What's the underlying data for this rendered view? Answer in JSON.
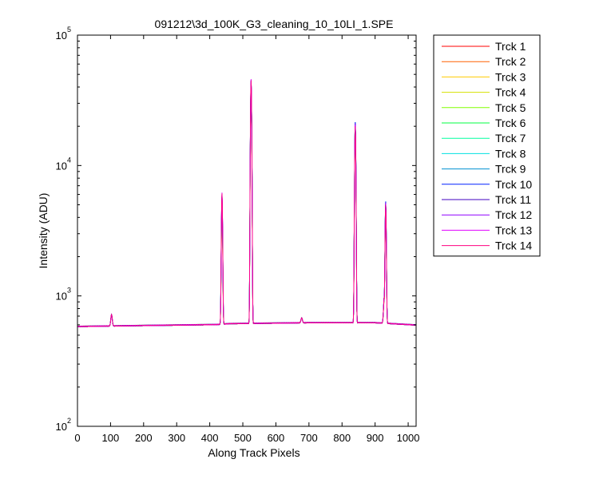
{
  "chart_data": {
    "type": "line",
    "title": "091212\\3d_100K_G3_cleaning_10_10LI_1.SPE",
    "xlabel": "Along Track Pixels",
    "ylabel": "Intensity (ADU)",
    "xlim": [
      0,
      1024
    ],
    "ylim": [
      100,
      100000
    ],
    "yscale": "log",
    "xticks": [
      0,
      100,
      200,
      300,
      400,
      500,
      600,
      700,
      800,
      900,
      1000
    ],
    "yticks": [
      {
        "value": 100,
        "base": "10",
        "exp": "2"
      },
      {
        "value": 1000,
        "base": "10",
        "exp": "3"
      },
      {
        "value": 10000,
        "base": "10",
        "exp": "4"
      },
      {
        "value": 100000,
        "base": "10",
        "exp": "5"
      }
    ],
    "grid": false,
    "legend_position": "outside-top-right",
    "baseline": [
      [
        0,
        580
      ],
      [
        200,
        590
      ],
      [
        420,
        600
      ],
      [
        460,
        610
      ],
      [
        700,
        620
      ],
      [
        900,
        620
      ],
      [
        1024,
        595
      ]
    ],
    "series": [
      {
        "name": "Trck 1",
        "color": "#ff0000",
        "peaks": [
          [
            437,
            4800
          ],
          [
            525,
            40000
          ],
          [
            840,
            19000
          ],
          [
            932,
            4800
          ],
          [
            928,
            950
          ],
          [
            103,
            720
          ],
          [
            678,
            680
          ]
        ]
      },
      {
        "name": "Trck 2",
        "color": "#ff6000",
        "peaks": [
          [
            437,
            5000
          ],
          [
            525,
            41000
          ],
          [
            840,
            19500
          ],
          [
            932,
            4900
          ],
          [
            928,
            960
          ],
          [
            103,
            720
          ],
          [
            678,
            680
          ]
        ]
      },
      {
        "name": "Trck 3",
        "color": "#ffcc00",
        "peaks": [
          [
            437,
            5200
          ],
          [
            525,
            42000
          ],
          [
            840,
            20000
          ],
          [
            932,
            5000
          ],
          [
            928,
            980
          ],
          [
            103,
            720
          ],
          [
            678,
            680
          ]
        ]
      },
      {
        "name": "Trck 4",
        "color": "#d4e000",
        "peaks": [
          [
            437,
            5300
          ],
          [
            525,
            42500
          ],
          [
            840,
            20000
          ],
          [
            932,
            5000
          ],
          [
            928,
            980
          ],
          [
            103,
            720
          ],
          [
            678,
            680
          ]
        ]
      },
      {
        "name": "Trck 5",
        "color": "#80ff00",
        "peaks": [
          [
            437,
            5400
          ],
          [
            525,
            43000
          ],
          [
            840,
            20500
          ],
          [
            932,
            5100
          ],
          [
            928,
            990
          ],
          [
            103,
            720
          ],
          [
            678,
            680
          ]
        ]
      },
      {
        "name": "Trck 6",
        "color": "#00ff40",
        "peaks": [
          [
            437,
            5500
          ],
          [
            525,
            43500
          ],
          [
            840,
            20500
          ],
          [
            932,
            5100
          ],
          [
            928,
            990
          ],
          [
            103,
            720
          ],
          [
            678,
            680
          ]
        ]
      },
      {
        "name": "Trck 7",
        "color": "#00ffa0",
        "peaks": [
          [
            437,
            5600
          ],
          [
            525,
            44000
          ],
          [
            840,
            21000
          ],
          [
            932,
            5200
          ],
          [
            928,
            1000
          ],
          [
            103,
            720
          ],
          [
            678,
            680
          ]
        ]
      },
      {
        "name": "Trck 8",
        "color": "#00e0e0",
        "peaks": [
          [
            437,
            5700
          ],
          [
            525,
            44000
          ],
          [
            840,
            21000
          ],
          [
            932,
            5200
          ],
          [
            928,
            1000
          ],
          [
            103,
            720
          ],
          [
            678,
            680
          ]
        ]
      },
      {
        "name": "Trck 9",
        "color": "#0090d0",
        "peaks": [
          [
            437,
            5800
          ],
          [
            525,
            44500
          ],
          [
            840,
            21500
          ],
          [
            932,
            5300
          ],
          [
            928,
            1000
          ],
          [
            103,
            720
          ],
          [
            678,
            680
          ]
        ]
      },
      {
        "name": "Trck 10",
        "color": "#0020ff",
        "peaks": [
          [
            437,
            5900
          ],
          [
            525,
            45000
          ],
          [
            840,
            21500
          ],
          [
            932,
            5300
          ],
          [
            928,
            1000
          ],
          [
            103,
            720
          ],
          [
            678,
            680
          ]
        ]
      },
      {
        "name": "Trck 11",
        "color": "#4000c0",
        "peaks": [
          [
            437,
            6000
          ],
          [
            525,
            45000
          ],
          [
            840,
            21000
          ],
          [
            932,
            5200
          ],
          [
            928,
            1000
          ],
          [
            103,
            720
          ],
          [
            678,
            680
          ]
        ]
      },
      {
        "name": "Trck 12",
        "color": "#9000ff",
        "peaks": [
          [
            437,
            6100
          ],
          [
            525,
            45500
          ],
          [
            840,
            21000
          ],
          [
            932,
            5200
          ],
          [
            928,
            1000
          ],
          [
            103,
            720
          ],
          [
            678,
            680
          ]
        ]
      },
      {
        "name": "Trck 13",
        "color": "#e000ff",
        "peaks": [
          [
            437,
            6200
          ],
          [
            525,
            46000
          ],
          [
            840,
            20500
          ],
          [
            932,
            5100
          ],
          [
            928,
            990
          ],
          [
            103,
            720
          ],
          [
            678,
            680
          ]
        ]
      },
      {
        "name": "Trck 14",
        "color": "#ff0080",
        "peaks": [
          [
            437,
            6100
          ],
          [
            525,
            45000
          ],
          [
            840,
            20000
          ],
          [
            932,
            5000
          ],
          [
            928,
            980
          ],
          [
            103,
            720
          ],
          [
            678,
            680
          ]
        ]
      }
    ]
  }
}
